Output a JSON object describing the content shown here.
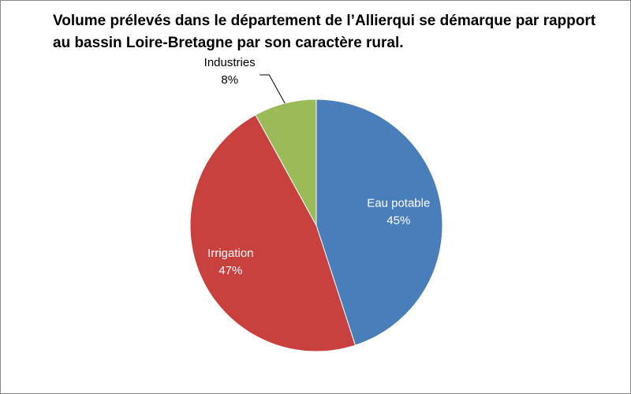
{
  "chart_data": {
    "type": "pie",
    "title": "Volume prélevés dans le département de l’Allierqui  se démarque par rapport au bassin Loire-Bretagne par son caractère rural.",
    "categories": [
      "Eau potable",
      "Irrigation",
      "Industries"
    ],
    "values": [
      45,
      47,
      8
    ],
    "value_labels": [
      "45%",
      "47%",
      "8%"
    ],
    "colors": [
      "#4a7ebb",
      "#c9413e",
      "#9bbb59"
    ]
  }
}
